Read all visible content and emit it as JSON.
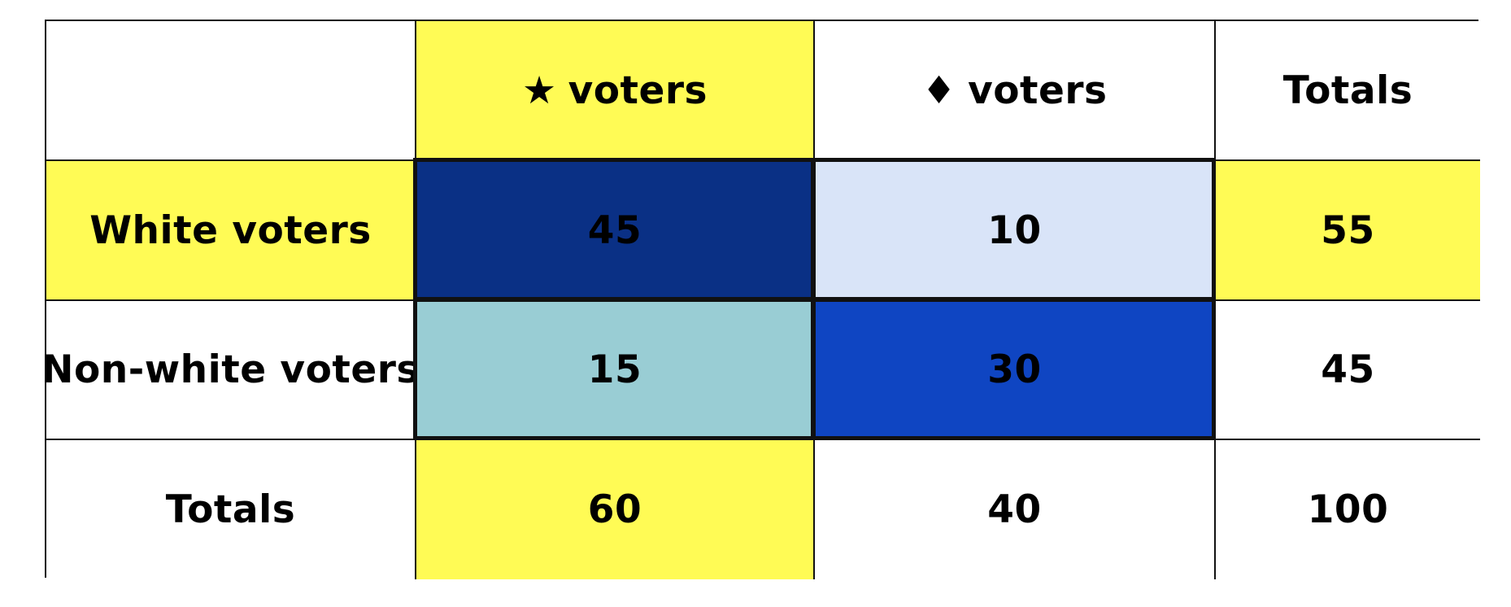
{
  "colors": {
    "highlight": "#fffb55",
    "dark_navy": "#0a3085",
    "pale_blue": "#d9e4f8",
    "light_teal": "#99cdd4",
    "royal_blue": "#0f45c2"
  },
  "chart_data": {
    "type": "table",
    "header": {
      "corner": "",
      "col1_symbol": "★",
      "col1_label": "voters",
      "col2_symbol": "♦",
      "col2_label": "voters",
      "col3": "Totals"
    },
    "rows": [
      {
        "label": "White voters",
        "values": [
          "45",
          "10",
          "55"
        ]
      },
      {
        "label": "Non-white voters",
        "values": [
          "15",
          "30",
          "45"
        ]
      },
      {
        "label": "Totals",
        "values": [
          "60",
          "40",
          "100"
        ]
      }
    ]
  }
}
